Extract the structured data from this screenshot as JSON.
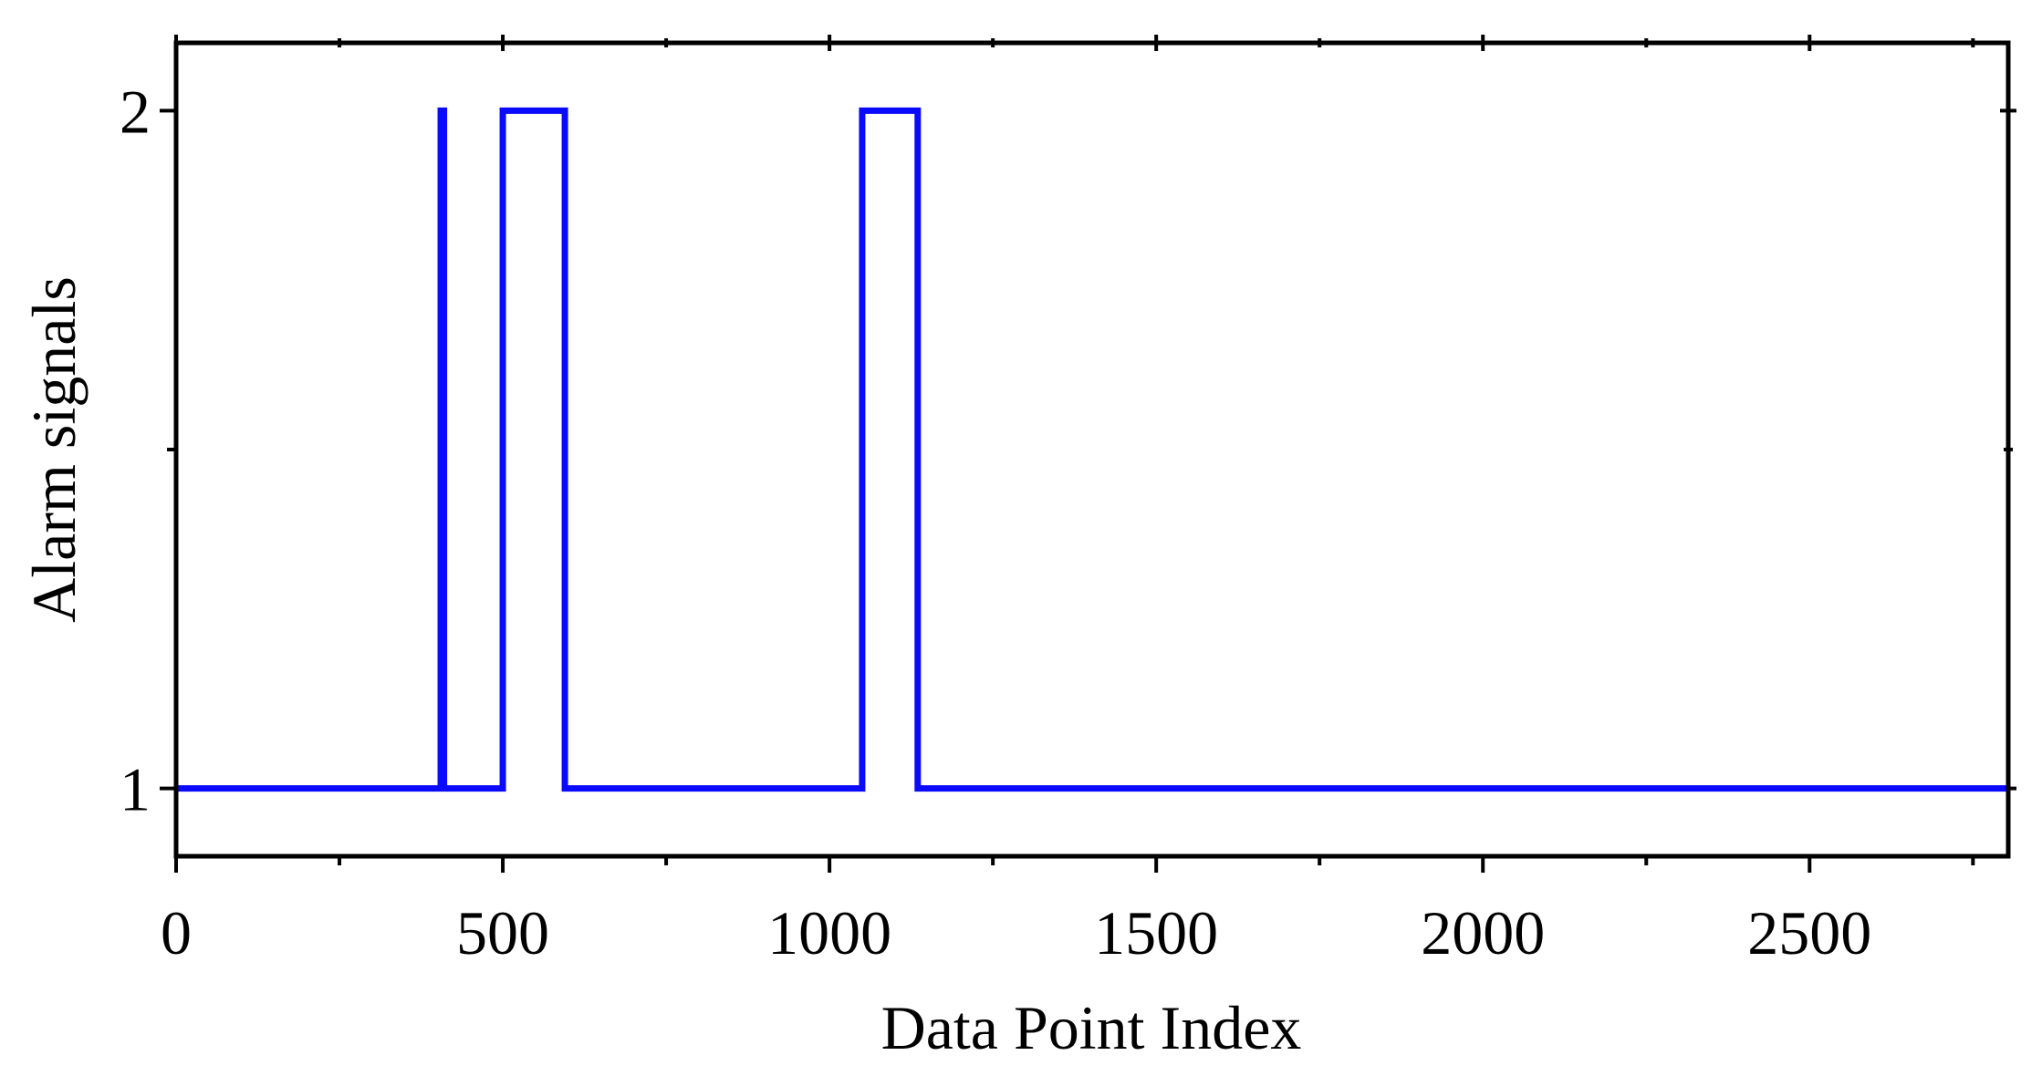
{
  "chart_data": {
    "type": "line",
    "x_label": "Data Point Index",
    "y_label": "Alarm signals",
    "x": [
      0,
      405,
      405,
      410,
      410,
      500,
      500,
      595,
      595,
      1050,
      1050,
      1135,
      1135,
      2804
    ],
    "values": [
      1,
      1,
      2,
      2,
      1,
      1,
      2,
      2,
      1,
      1,
      2,
      2,
      1,
      1
    ],
    "color": "#0a0aff",
    "xlim": [
      0,
      2804
    ],
    "ylim": [
      0.9,
      2.1
    ],
    "xticks": [
      0,
      500,
      1000,
      1500,
      2000,
      2500
    ],
    "minor_xticks": [
      250,
      750,
      1250,
      1750,
      2250,
      2750
    ],
    "yticks": [
      1,
      2
    ],
    "minor_yticks": [
      1.5
    ],
    "grid": false
  }
}
